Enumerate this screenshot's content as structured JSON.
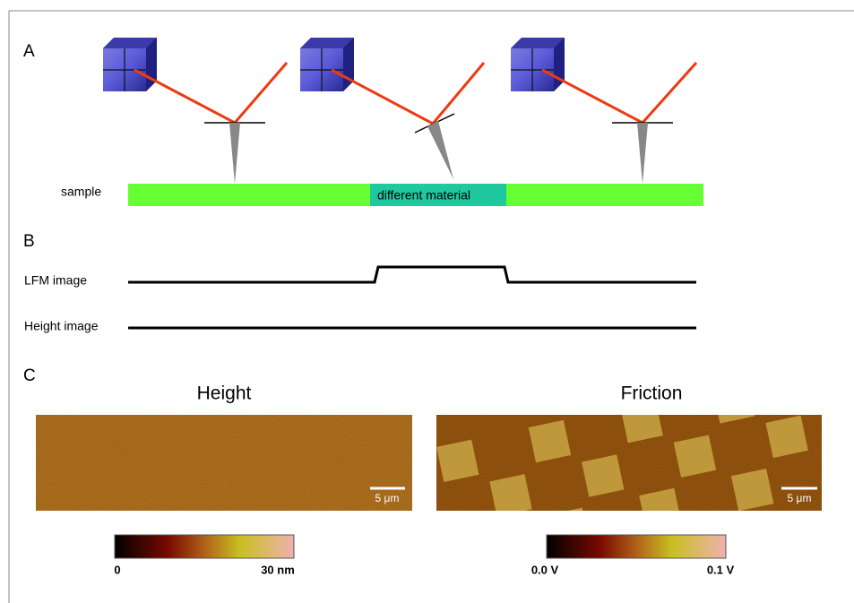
{
  "panels": {
    "a": {
      "label": "A",
      "sample_label": "sample",
      "material_label": "different material"
    },
    "b": {
      "label": "B",
      "lfm_label": "LFM image",
      "height_label": "Height image"
    },
    "c": {
      "label": "C",
      "images": [
        {
          "title": "Height",
          "scale_bar": "5 μm",
          "colorbar_min": "0",
          "colorbar_max": "30 nm"
        },
        {
          "title": "Friction",
          "scale_bar": "5 μm",
          "colorbar_min": "0.0 V",
          "colorbar_max": "0.1 V"
        }
      ]
    }
  }
}
